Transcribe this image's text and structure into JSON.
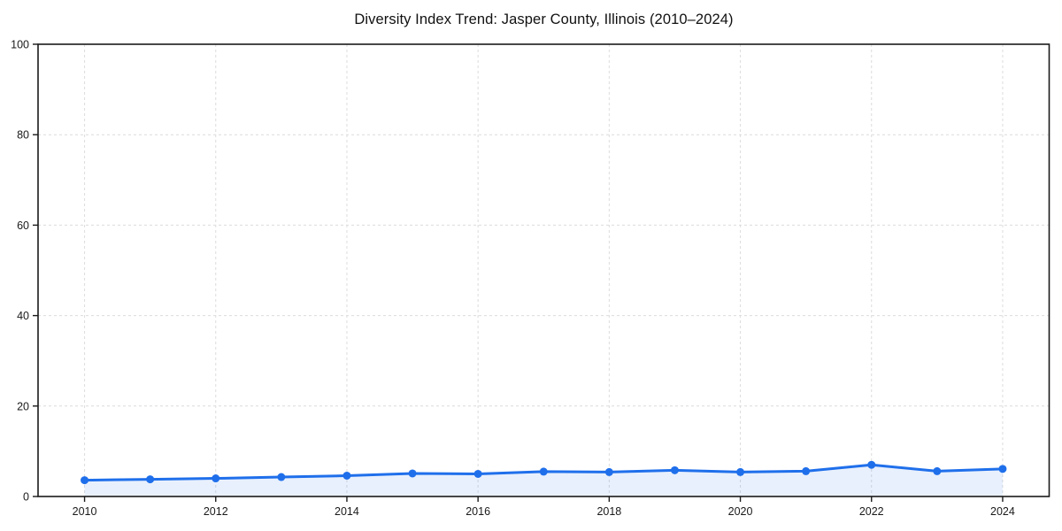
{
  "chart_data": {
    "type": "line",
    "title": "Diversity Index Trend: Jasper County, Illinois (2010–2024)",
    "xlabel": "",
    "ylabel": "",
    "x": [
      2010,
      2011,
      2012,
      2013,
      2014,
      2015,
      2016,
      2017,
      2018,
      2019,
      2020,
      2021,
      2022,
      2023,
      2024
    ],
    "series": [
      {
        "name": "Diversity Index",
        "values": [
          3.6,
          3.8,
          4.0,
          4.3,
          4.6,
          5.1,
          5.0,
          5.5,
          5.4,
          5.8,
          5.4,
          5.6,
          7.0,
          5.6,
          6.1
        ]
      }
    ],
    "ylim": [
      0,
      100
    ],
    "yticks": [
      0,
      20,
      40,
      60,
      80,
      100
    ],
    "xticks": [
      2010,
      2012,
      2014,
      2016,
      2018,
      2020,
      2022,
      2024
    ],
    "grid": "dashed",
    "legend": "none",
    "area_fill": true,
    "colors": {
      "line": "#1f6feb",
      "marker": "#1f6feb",
      "area": "#1f6feb",
      "area_opacity": "0.10",
      "grid": "#dcdcdc",
      "axis": "#1a1a1a",
      "tick_label": "#1a1a1a",
      "title": "#111111",
      "background": "#ffffff"
    }
  }
}
